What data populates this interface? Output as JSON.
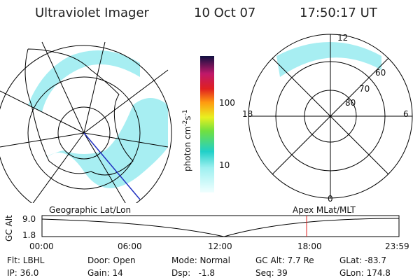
{
  "header": {
    "instrument": "Ultraviolet Imager",
    "date": "10 Oct 07",
    "time": "17:50:17 UT"
  },
  "colorbar": {
    "label": "photon cm",
    "exp1": "-2",
    "mid": "s",
    "exp2": "-1",
    "ticks": [
      "100",
      "10"
    ]
  },
  "polar": {
    "mlt": [
      "12",
      "18",
      "6",
      "0"
    ],
    "mlat": [
      "60",
      "70",
      "80"
    ]
  },
  "strip": {
    "left_label": "Geographic Lat/Lon",
    "right_label": "Apex MLat/MLT",
    "axis_label": "GC Alt",
    "yticks": [
      "9.0",
      "1.8"
    ],
    "xticks": [
      "00:00",
      "06:00",
      "12:00",
      "18:00",
      "23:59"
    ]
  },
  "info": [
    [
      "Flt: LBHL",
      "Door: Open",
      "Mode: Normal",
      "GC Alt: 7.7 Re",
      "GLat: -83.7"
    ],
    [
      "IP: 36.0",
      "Gain: 14",
      "Dsp:   -1.8",
      "Seq: 39",
      "GLon: 174.8"
    ]
  ]
}
